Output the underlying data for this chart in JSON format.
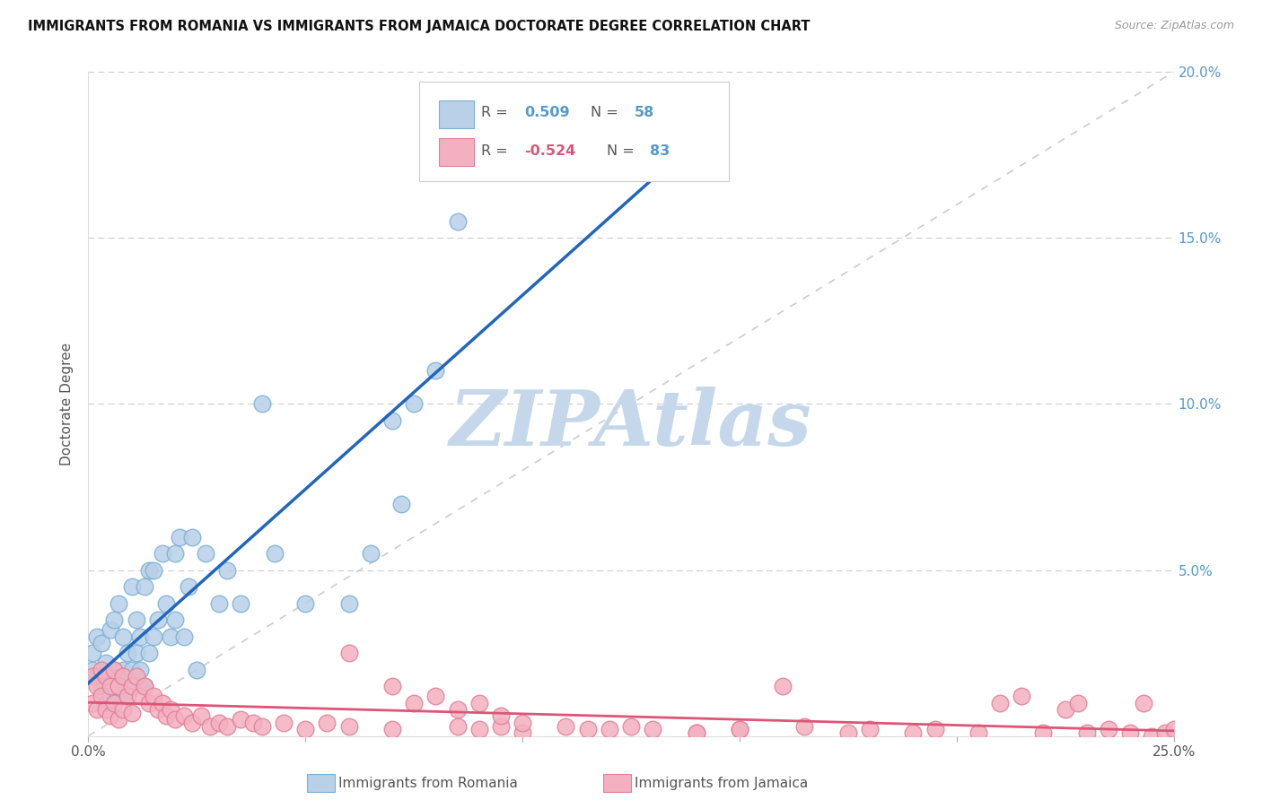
{
  "title": "IMMIGRANTS FROM ROMANIA VS IMMIGRANTS FROM JAMAICA DOCTORATE DEGREE CORRELATION CHART",
  "source": "Source: ZipAtlas.com",
  "ylabel": "Doctorate Degree",
  "xlim": [
    0,
    0.25
  ],
  "ylim": [
    0,
    0.2
  ],
  "yticks": [
    0.0,
    0.05,
    0.1,
    0.15,
    0.2
  ],
  "ytick_labels_right": [
    "",
    "5.0%",
    "10.0%",
    "15.0%",
    "20.0%"
  ],
  "xticks": [
    0.0,
    0.05,
    0.1,
    0.15,
    0.2,
    0.25
  ],
  "xtick_labels": [
    "0.0%",
    "",
    "",
    "",
    "",
    "25.0%"
  ],
  "romania_fill": "#b8d0e8",
  "romania_edge": "#7bafd4",
  "jamaica_fill": "#f4b0c0",
  "jamaica_edge": "#e08098",
  "romania_line_color": "#2266bb",
  "jamaica_line_color": "#dd5577",
  "ref_line_color": "#cccccc",
  "grid_color": "#dddddd",
  "right_tick_color": "#5599cc",
  "watermark_text": "ZIPAtlas",
  "watermark_color": "#c5d8eb",
  "legend_romania_label": "Immigrants from Romania",
  "legend_jamaica_label": "Immigrants from Jamaica",
  "romania_R_val": "0.509",
  "romania_N_val": "58",
  "jamaica_R_val": "-0.524",
  "jamaica_N_val": "83",
  "romania_x": [
    0.001,
    0.001,
    0.002,
    0.002,
    0.003,
    0.003,
    0.004,
    0.004,
    0.005,
    0.005,
    0.005,
    0.006,
    0.006,
    0.007,
    0.007,
    0.008,
    0.008,
    0.009,
    0.009,
    0.01,
    0.01,
    0.01,
    0.011,
    0.011,
    0.012,
    0.012,
    0.013,
    0.013,
    0.014,
    0.014,
    0.015,
    0.015,
    0.016,
    0.017,
    0.018,
    0.019,
    0.02,
    0.02,
    0.021,
    0.022,
    0.023,
    0.024,
    0.025,
    0.027,
    0.03,
    0.032,
    0.035,
    0.04,
    0.043,
    0.05,
    0.06,
    0.065,
    0.07,
    0.072,
    0.075,
    0.08,
    0.085,
    0.09
  ],
  "romania_y": [
    0.02,
    0.025,
    0.018,
    0.03,
    0.015,
    0.028,
    0.01,
    0.022,
    0.018,
    0.012,
    0.032,
    0.02,
    0.035,
    0.015,
    0.04,
    0.02,
    0.03,
    0.012,
    0.025,
    0.02,
    0.015,
    0.045,
    0.025,
    0.035,
    0.02,
    0.03,
    0.015,
    0.045,
    0.025,
    0.05,
    0.03,
    0.05,
    0.035,
    0.055,
    0.04,
    0.03,
    0.055,
    0.035,
    0.06,
    0.03,
    0.045,
    0.06,
    0.02,
    0.055,
    0.04,
    0.05,
    0.04,
    0.1,
    0.055,
    0.04,
    0.04,
    0.055,
    0.095,
    0.07,
    0.1,
    0.11,
    0.155,
    0.18
  ],
  "jamaica_x": [
    0.001,
    0.001,
    0.002,
    0.002,
    0.003,
    0.003,
    0.004,
    0.004,
    0.005,
    0.005,
    0.006,
    0.006,
    0.007,
    0.007,
    0.008,
    0.008,
    0.009,
    0.01,
    0.01,
    0.011,
    0.012,
    0.013,
    0.014,
    0.015,
    0.016,
    0.017,
    0.018,
    0.019,
    0.02,
    0.022,
    0.024,
    0.026,
    0.028,
    0.03,
    0.032,
    0.035,
    0.038,
    0.04,
    0.045,
    0.05,
    0.055,
    0.06,
    0.07,
    0.085,
    0.09,
    0.095,
    0.1,
    0.115,
    0.125,
    0.14,
    0.15,
    0.165,
    0.175,
    0.18,
    0.19,
    0.195,
    0.205,
    0.21,
    0.215,
    0.22,
    0.225,
    0.228,
    0.23,
    0.235,
    0.24,
    0.243,
    0.245,
    0.248,
    0.25,
    0.06,
    0.07,
    0.075,
    0.08,
    0.085,
    0.09,
    0.095,
    0.1,
    0.11,
    0.12,
    0.13,
    0.14,
    0.15,
    0.16
  ],
  "jamaica_y": [
    0.018,
    0.01,
    0.015,
    0.008,
    0.02,
    0.012,
    0.018,
    0.008,
    0.015,
    0.006,
    0.02,
    0.01,
    0.015,
    0.005,
    0.018,
    0.008,
    0.012,
    0.015,
    0.007,
    0.018,
    0.012,
    0.015,
    0.01,
    0.012,
    0.008,
    0.01,
    0.006,
    0.008,
    0.005,
    0.006,
    0.004,
    0.006,
    0.003,
    0.004,
    0.003,
    0.005,
    0.004,
    0.003,
    0.004,
    0.002,
    0.004,
    0.003,
    0.002,
    0.003,
    0.002,
    0.003,
    0.001,
    0.002,
    0.003,
    0.001,
    0.002,
    0.003,
    0.001,
    0.002,
    0.001,
    0.002,
    0.001,
    0.01,
    0.012,
    0.001,
    0.008,
    0.01,
    0.001,
    0.002,
    0.001,
    0.01,
    0.0,
    0.001,
    0.002,
    0.025,
    0.015,
    0.01,
    0.012,
    0.008,
    0.01,
    0.006,
    0.004,
    0.003,
    0.002,
    0.002,
    0.001,
    0.002,
    0.015
  ]
}
